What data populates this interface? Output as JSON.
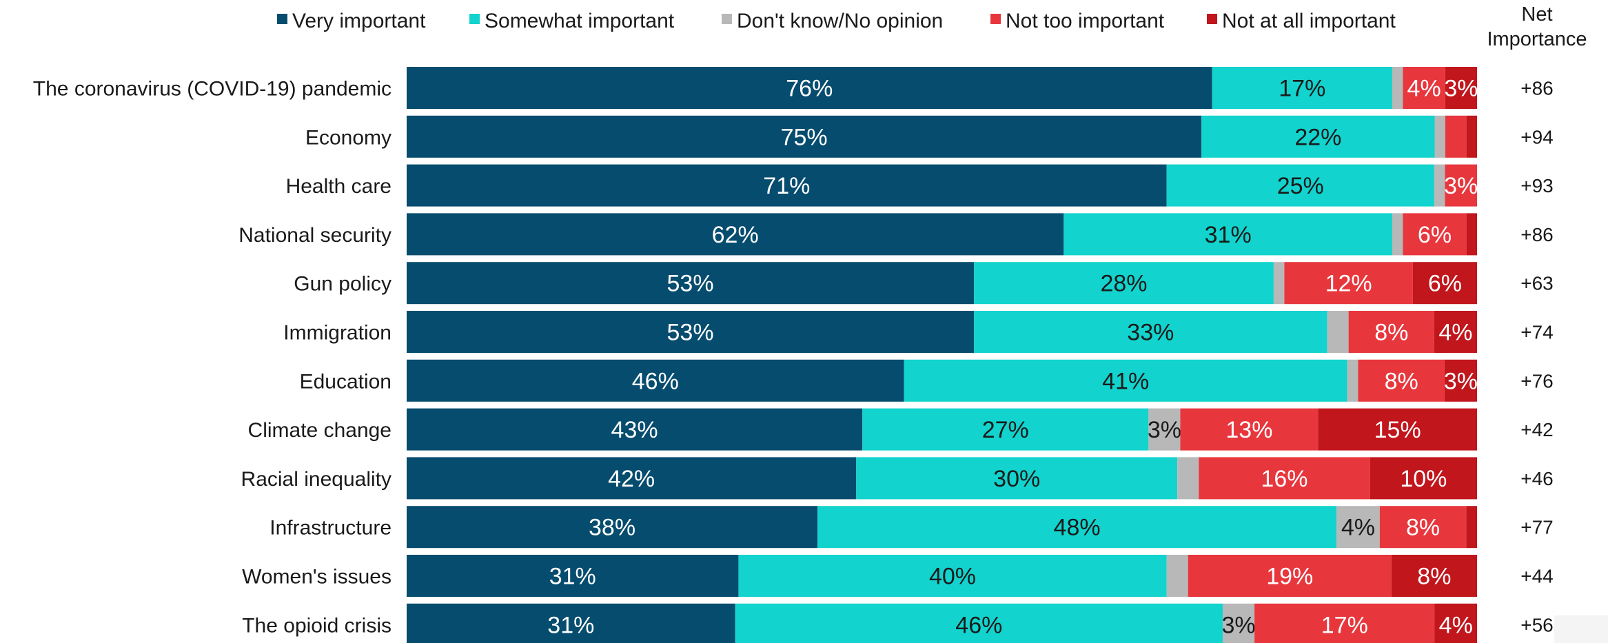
{
  "chart_data": {
    "type": "bar",
    "orientation": "horizontal",
    "stacked": true,
    "percent_stacked": true,
    "categories": [
      "The coronavirus (COVID-19) pandemic",
      "Economy",
      "Health care",
      "National security",
      "Gun policy",
      "Immigration",
      "Education",
      "Climate change",
      "Racial inequality",
      "Infrastructure",
      "Women's issues",
      "The opioid crisis"
    ],
    "series": [
      {
        "name": "Very important",
        "color": "#064c6e",
        "label_color": "#ffffff",
        "values": [
          76,
          75,
          71,
          62,
          53,
          53,
          46,
          43,
          42,
          38,
          31,
          31
        ]
      },
      {
        "name": "Somewhat important",
        "color": "#12d3cd",
        "label_color": "#1a1a1a",
        "values": [
          17,
          22,
          25,
          31,
          28,
          33,
          41,
          27,
          30,
          48,
          40,
          46
        ]
      },
      {
        "name": "Don't know/No opinion",
        "color": "#b8b8b8",
        "label_color": "#1a1a1a",
        "values": [
          1,
          1,
          1,
          1,
          1,
          2,
          1,
          3,
          2,
          4,
          2,
          3
        ]
      },
      {
        "name": "Not too important",
        "color": "#e8363d",
        "label_color": "#ffffff",
        "values": [
          4,
          2,
          3,
          6,
          12,
          8,
          8,
          13,
          16,
          8,
          19,
          17
        ]
      },
      {
        "name": "Not at all important",
        "color": "#c0161c",
        "label_color": "#ffffff",
        "values": [
          3,
          1,
          0,
          1,
          6,
          4,
          3,
          15,
          10,
          1,
          8,
          4
        ]
      }
    ],
    "data_labels": [
      [
        "76%",
        "17%",
        "",
        "4%",
        "3%"
      ],
      [
        "75%",
        "22%",
        "",
        "",
        ""
      ],
      [
        "71%",
        "25%",
        "",
        "3%",
        ""
      ],
      [
        "62%",
        "31%",
        "",
        "6%",
        ""
      ],
      [
        "53%",
        "28%",
        "",
        "12%",
        "6%"
      ],
      [
        "53%",
        "33%",
        "",
        "8%",
        "4%"
      ],
      [
        "46%",
        "41%",
        "",
        "8%",
        "3%"
      ],
      [
        "43%",
        "27%",
        "3%",
        "13%",
        "15%"
      ],
      [
        "42%",
        "30%",
        "",
        "16%",
        "10%"
      ],
      [
        "38%",
        "48%",
        "4%",
        "8%",
        ""
      ],
      [
        "31%",
        "40%",
        "",
        "19%",
        "8%"
      ],
      [
        "31%",
        "46%",
        "3%",
        "17%",
        "4%"
      ]
    ],
    "net_importance": {
      "title_line1": "Net",
      "title_line2": "Importance",
      "values": [
        "+86",
        "+94",
        "+93",
        "+86",
        "+63",
        "+74",
        "+76",
        "+42",
        "+46",
        "+77",
        "+44",
        "+56"
      ]
    },
    "legend_position": "top",
    "grid": false
  }
}
